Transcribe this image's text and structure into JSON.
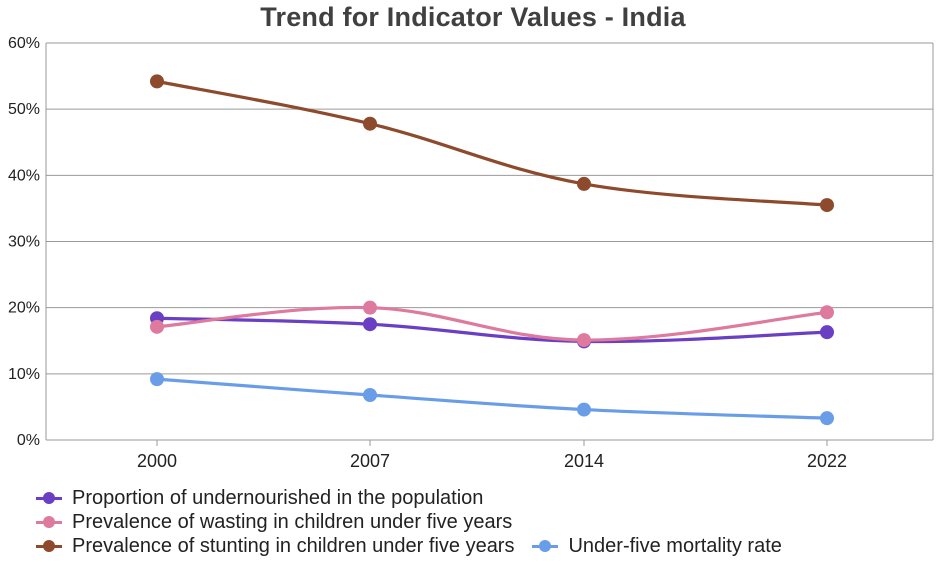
{
  "chart_data": {
    "type": "line",
    "title": "Trend for Indicator Values - India",
    "xlabel": "",
    "ylabel": "",
    "categories": [
      "2000",
      "2007",
      "2014",
      "2022"
    ],
    "ylim": [
      0,
      60
    ],
    "y_ticks": [
      "0%",
      "10%",
      "20%",
      "30%",
      "40%",
      "50%",
      "60%"
    ],
    "grid": true,
    "legend_position": "bottom",
    "series": [
      {
        "name": "Proportion of undernourished in the population",
        "color": "#6a3fc4",
        "values": [
          18.4,
          17.5,
          14.9,
          16.3
        ]
      },
      {
        "name": "Prevalence of wasting in children under five years",
        "color": "#dd7a9e",
        "values": [
          17.1,
          20.0,
          15.1,
          19.3
        ]
      },
      {
        "name": "Prevalence of stunting in children under five years",
        "color": "#8e4a2c",
        "values": [
          54.2,
          47.8,
          38.7,
          35.5
        ]
      },
      {
        "name": "Under-five mortality rate",
        "color": "#6a9de8",
        "values": [
          9.2,
          6.8,
          4.6,
          3.3
        ]
      }
    ]
  }
}
